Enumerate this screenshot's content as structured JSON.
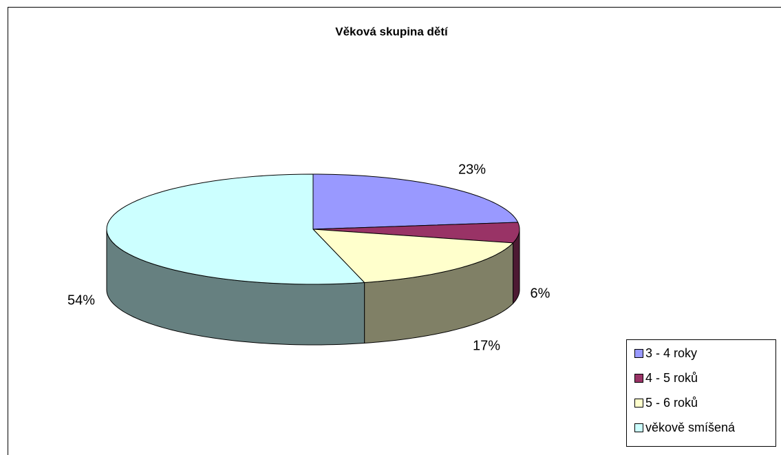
{
  "chart_data": {
    "type": "pie",
    "title": "Věková skupina dětí",
    "categories": [
      "3 - 4 roky",
      "4 - 5 roků",
      "5 - 6 roků",
      "věkově smíšená"
    ],
    "values": [
      23,
      6,
      17,
      54
    ],
    "value_labels": [
      "23%",
      "6%",
      "17%",
      "54%"
    ],
    "colors": [
      "#9999ff",
      "#993366",
      "#ffffcc",
      "#ccffff"
    ],
    "legend": "right"
  }
}
